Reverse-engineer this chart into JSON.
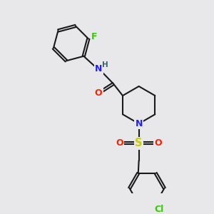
{
  "bg_color": "#e8e8eb",
  "bond_color": "#1a1a1a",
  "bond_width": 1.5,
  "atom_colors": {
    "N": "#2020ff",
    "O": "#ff2000",
    "S": "#cccc00",
    "F": "#33cc00",
    "Cl": "#33cc00",
    "H": "#336666",
    "C": "#1a1a1a"
  },
  "font_size_atom": 9,
  "font_size_H": 7.5,
  "font_size_Cl": 9
}
